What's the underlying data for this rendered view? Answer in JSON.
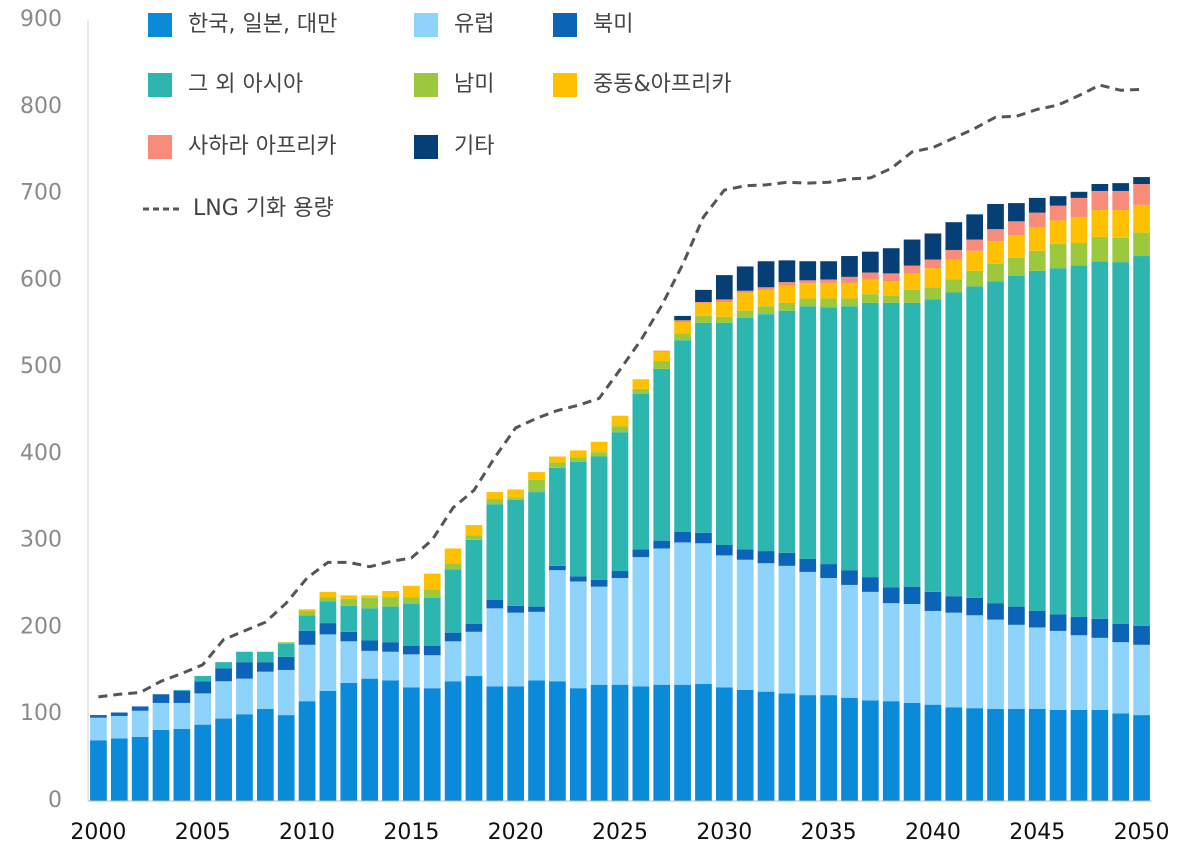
{
  "chart_data": {
    "type": "bar",
    "stacked": true,
    "x": [
      2000,
      2001,
      2002,
      2003,
      2004,
      2005,
      2006,
      2007,
      2008,
      2009,
      2010,
      2011,
      2012,
      2013,
      2014,
      2015,
      2016,
      2017,
      2018,
      2019,
      2020,
      2021,
      2022,
      2023,
      2024,
      2025,
      2026,
      2027,
      2028,
      2029,
      2030,
      2031,
      2032,
      2033,
      2034,
      2035,
      2036,
      2037,
      2038,
      2039,
      2040,
      2041,
      2042,
      2043,
      2044,
      2045,
      2046,
      2047,
      2048,
      2049,
      2050
    ],
    "xlim": [
      1999.5,
      2050.5
    ],
    "xticks": [
      2000,
      2005,
      2010,
      2015,
      2020,
      2025,
      2030,
      2035,
      2040,
      2045,
      2050
    ],
    "ylim": [
      0,
      900
    ],
    "yticks": [
      0,
      100,
      200,
      300,
      400,
      500,
      600,
      700,
      800,
      900
    ],
    "grid": false,
    "series": [
      {
        "name": "한국, 일본, 대만",
        "color": "#0a8ad8",
        "values": [
          70,
          72,
          74,
          82,
          83,
          88,
          95,
          100,
          106,
          99,
          115,
          127,
          136,
          141,
          139,
          131,
          130,
          138,
          144,
          132,
          132,
          139,
          138,
          130,
          134,
          134,
          132,
          134,
          134,
          135,
          131,
          128,
          126,
          124,
          122,
          122,
          119,
          116,
          115,
          113,
          111,
          108,
          107,
          106,
          106,
          106,
          105,
          105,
          105,
          101,
          99
        ]
      },
      {
        "name": "유럽",
        "color": "#8dd3fb",
        "values": [
          26,
          26,
          30,
          31,
          30,
          36,
          43,
          41,
          43,
          52,
          65,
          65,
          48,
          32,
          33,
          38,
          38,
          46,
          51,
          90,
          85,
          79,
          128,
          123,
          113,
          123,
          149,
          157,
          164,
          162,
          152,
          150,
          148,
          147,
          142,
          135,
          130,
          125,
          113,
          114,
          108,
          109,
          107,
          103,
          97,
          94,
          91,
          86,
          83,
          82,
          81
        ]
      },
      {
        "name": "북미",
        "color": "#0b64b8",
        "values": [
          3,
          4,
          5,
          10,
          14,
          14,
          15,
          19,
          11,
          15,
          16,
          13,
          11,
          12,
          11,
          10,
          11,
          10,
          9,
          10,
          8,
          6,
          5,
          6,
          8,
          8,
          9,
          9,
          12,
          12,
          12,
          12,
          14,
          15,
          15,
          16,
          17,
          17,
          18,
          20,
          22,
          19,
          20,
          19,
          21,
          19,
          19,
          21,
          22,
          21,
          22
        ]
      },
      {
        "name": "그 외 아시아",
        "color": "#2db6b0",
        "values": [
          0,
          0,
          0,
          0,
          1,
          6,
          7,
          12,
          12,
          15,
          18,
          25,
          30,
          37,
          41,
          48,
          55,
          73,
          97,
          110,
          122,
          132,
          113,
          132,
          142,
          160,
          179,
          198,
          221,
          242,
          256,
          267,
          273,
          279,
          291,
          296,
          304,
          316,
          328,
          327,
          337,
          350,
          359,
          371,
          381,
          392,
          399,
          405,
          412,
          417,
          426
        ]
      },
      {
        "name": "남미",
        "color": "#9bc83d",
        "values": [
          0,
          0,
          0,
          0,
          0,
          0,
          0,
          0,
          0,
          2,
          5,
          5,
          8,
          12,
          11,
          8,
          10,
          7,
          5,
          6,
          3,
          14,
          6,
          5,
          5,
          7,
          6,
          9,
          8,
          8,
          7,
          8,
          9,
          9,
          9,
          10,
          9,
          10,
          8,
          15,
          14,
          15,
          18,
          20,
          21,
          23,
          28,
          26,
          28,
          28,
          27
        ]
      },
      {
        "name": "중동&아프리카",
        "color": "#ffc000",
        "values": [
          0,
          0,
          0,
          0,
          0,
          0,
          0,
          0,
          0,
          0,
          2,
          6,
          4,
          3,
          7,
          13,
          18,
          17,
          12,
          8,
          9,
          9,
          7,
          8,
          12,
          12,
          11,
          11,
          13,
          15,
          17,
          21,
          19,
          20,
          18,
          18,
          18,
          17,
          17,
          19,
          22,
          23,
          23,
          26,
          26,
          27,
          27,
          30,
          31,
          32,
          32
        ]
      },
      {
        "name": "사하라 아프리카",
        "color": "#f98b7b",
        "values": [
          0,
          0,
          0,
          0,
          0,
          0,
          0,
          0,
          0,
          0,
          0,
          0,
          0,
          0,
          0,
          0,
          0,
          0,
          0,
          0,
          0,
          0,
          0,
          0,
          0,
          0,
          0,
          1,
          2,
          1,
          3,
          2,
          3,
          4,
          3,
          4,
          7,
          8,
          9,
          9,
          10,
          11,
          13,
          14,
          16,
          17,
          17,
          22,
          22,
          22,
          24
        ]
      },
      {
        "name": "기타",
        "color": "#053f75",
        "values": [
          0,
          0,
          0,
          0,
          0,
          0,
          0,
          0,
          0,
          0,
          0,
          0,
          0,
          0,
          0,
          0,
          0,
          0,
          0,
          0,
          0,
          0,
          0,
          0,
          0,
          0,
          0,
          0,
          5,
          14,
          28,
          28,
          30,
          25,
          22,
          21,
          24,
          24,
          29,
          30,
          30,
          32,
          29,
          29,
          21,
          17,
          11,
          7,
          8,
          9,
          8
        ]
      }
    ],
    "line": {
      "name": "LNG 기화 용량",
      "color": "#555555",
      "dashed": true,
      "values": [
        120,
        123,
        125,
        138,
        147,
        157,
        186,
        196,
        206,
        228,
        257,
        275,
        275,
        270,
        276,
        280,
        301,
        338,
        358,
        396,
        430,
        441,
        450,
        456,
        464,
        497,
        531,
        571,
        618,
        673,
        704,
        709,
        710,
        713,
        712,
        713,
        717,
        718,
        729,
        748,
        753,
        764,
        775,
        788,
        789,
        797,
        802,
        813,
        825,
        819,
        820
      ]
    }
  }
}
